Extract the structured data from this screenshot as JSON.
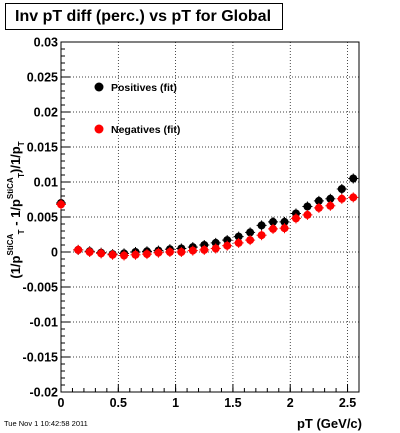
{
  "title": "Inv pT diff (perc.) vs pT for Global",
  "timestamp": "Tue Nov  1 10:42:58 2011",
  "chart_data": {
    "type": "scatter",
    "title": "Inv pT diff (perc.) vs pT for Global",
    "xlabel": "pT (GeV/c)",
    "ylabel_parts": {
      "main": "(1/p",
      "sub_T": "T",
      "sup_stica": "StiCA",
      "mid": " - 1/p",
      "close": ")/1/p"
    },
    "xlim": [
      0,
      2.6
    ],
    "ylim": [
      -0.02,
      0.03
    ],
    "x_ticks": [
      0,
      0.5,
      1,
      1.5,
      2,
      2.5
    ],
    "x_tick_labels": [
      "0",
      "0.5",
      "1",
      "1.5",
      "2",
      "2.5"
    ],
    "y_ticks": [
      -0.02,
      -0.015,
      -0.01,
      -0.005,
      0,
      0.005,
      0.01,
      0.015,
      0.02,
      0.025,
      0.03
    ],
    "y_tick_labels": [
      "-0.02",
      "-0.015",
      "-0.01",
      "-0.005",
      "0",
      "0.005",
      "0.01",
      "0.015",
      "0.02",
      "0.025",
      "0.03"
    ],
    "grid": true,
    "legend_placement": "top-left",
    "series": [
      {
        "name": "Positives (fit)",
        "color": "#000000",
        "x": [
          0.0,
          0.15,
          0.25,
          0.35,
          0.45,
          0.55,
          0.65,
          0.75,
          0.85,
          0.95,
          1.05,
          1.15,
          1.25,
          1.35,
          1.45,
          1.55,
          1.65,
          1.75,
          1.85,
          1.95,
          2.05,
          2.15,
          2.25,
          2.35,
          2.45,
          2.55
        ],
        "y": [
          0.007,
          0.0003,
          0.0001,
          -0.0001,
          -0.0003,
          -0.0002,
          0.0,
          0.0001,
          0.0002,
          0.0004,
          0.0005,
          0.0007,
          0.001,
          0.0013,
          0.0017,
          0.0022,
          0.0028,
          0.0038,
          0.0043,
          0.0043,
          0.0055,
          0.0065,
          0.0073,
          0.0076,
          0.009,
          0.0105
        ]
      },
      {
        "name": "Negatives (fit)",
        "color": "#ff0000",
        "x": [
          0.0,
          0.15,
          0.25,
          0.35,
          0.45,
          0.55,
          0.65,
          0.75,
          0.85,
          0.95,
          1.05,
          1.15,
          1.25,
          1.35,
          1.45,
          1.55,
          1.65,
          1.75,
          1.85,
          1.95,
          2.05,
          2.15,
          2.25,
          2.35,
          2.45,
          2.55
        ],
        "y": [
          0.0068,
          0.0003,
          0.0,
          -0.0002,
          -0.0004,
          -0.0005,
          -0.0004,
          -0.0003,
          -0.0001,
          0.0,
          0.0,
          0.0002,
          0.0003,
          0.0005,
          0.0009,
          0.0013,
          0.0017,
          0.0024,
          0.0033,
          0.0034,
          0.0048,
          0.0053,
          0.0063,
          0.0066,
          0.0076,
          0.0078
        ]
      }
    ]
  }
}
